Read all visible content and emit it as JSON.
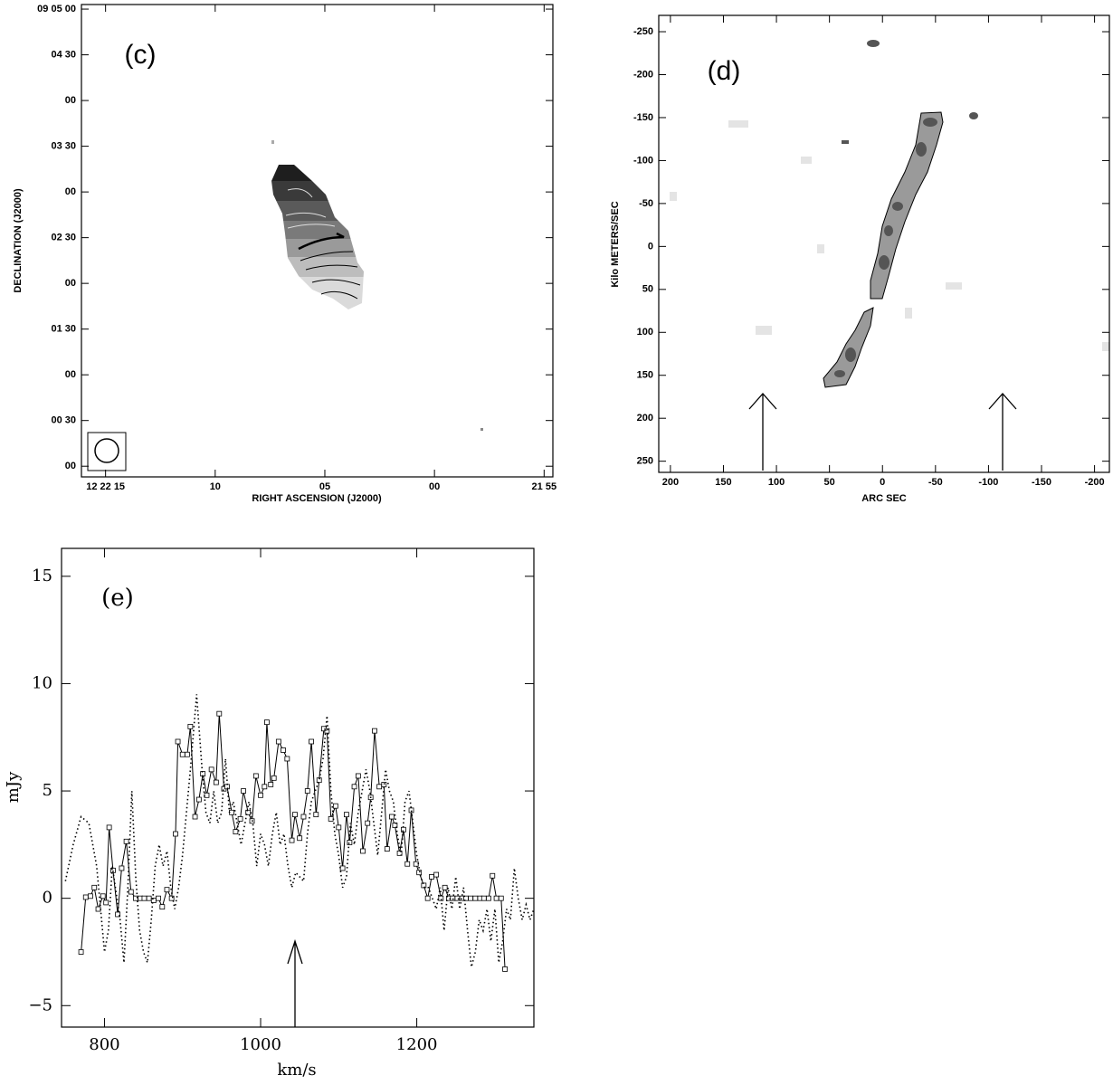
{
  "chart_data": [
    {
      "type": "map",
      "annotation": "(c)",
      "xlabel": "RIGHT ASCENSION (J2000)",
      "ylabel": "DECLINATION (J2000)",
      "xlim": [
        16.1,
        -5.4
      ],
      "xticks": [
        {
          "value": 15,
          "label": "12 22 15"
        },
        10,
        {
          "value": 5,
          "label": "05"
        },
        {
          "value": 0,
          "label": "00"
        },
        {
          "value": -5,
          "label": "21 55"
        }
      ],
      "ylim": [
        -7,
        303
      ],
      "yticks": [
        {
          "value": 300,
          "label": "09 05 00"
        },
        {
          "value": 270,
          "label": "04 30"
        },
        {
          "value": 240,
          "label": "00"
        },
        {
          "value": 210,
          "label": "03 30"
        },
        {
          "value": 180,
          "label": "00"
        },
        {
          "value": 150,
          "label": "02 30"
        },
        {
          "value": 120,
          "label": "00"
        },
        {
          "value": 90,
          "label": "01 30"
        },
        {
          "value": 60,
          "label": "00"
        },
        {
          "value": 30,
          "label": "00 30"
        },
        {
          "value": 0,
          "label": "00"
        }
      ]
    },
    {
      "type": "map",
      "annotation": "(d)",
      "xlabel": "ARC SEC",
      "ylabel": "Kilo METERS/SEC",
      "xlim": [
        211,
        -214
      ],
      "xticks": [
        200,
        150,
        100,
        50,
        0,
        -50,
        -100,
        -150,
        -200
      ],
      "ylim": [
        263,
        -269
      ],
      "yticks": [
        -250,
        -200,
        -150,
        -100,
        -50,
        0,
        50,
        100,
        150,
        200,
        250
      ]
    },
    {
      "type": "line",
      "annotation": "(e)",
      "xlabel": "km/s",
      "ylabel": "mJy",
      "xlim": [
        745,
        1350
      ],
      "xticks": [
        800,
        1000,
        1200
      ],
      "ylim": [
        -6,
        16.3
      ],
      "yticks": [
        15,
        10,
        5,
        0,
        {
          "value": -5,
          "label": "−5"
        }
      ],
      "series": [
        {
          "color": "#000000",
          "style": "solid",
          "markers": true,
          "x": [
            770,
            776,
            782,
            787,
            792,
            798,
            802,
            806,
            811,
            817,
            822,
            828,
            834,
            840,
            846,
            851,
            857,
            863,
            869,
            874,
            880,
            886,
            891,
            894,
            900,
            906,
            910,
            916,
            921,
            926,
            931,
            937,
            943,
            947,
            953,
            957,
            963,
            968,
            974,
            978,
            984,
            989,
            994,
            1000,
            1005,
            1008,
            1013,
            1017,
            1023,
            1029,
            1034,
            1040,
            1044,
            1050,
            1055,
            1060,
            1065,
            1071,
            1075,
            1081,
            1085,
            1090,
            1096,
            1100,
            1105,
            1110,
            1114,
            1120,
            1125,
            1131,
            1137,
            1141,
            1146,
            1152,
            1158,
            1162,
            1168,
            1172,
            1178,
            1183,
            1188,
            1193,
            1199,
            1203,
            1209,
            1214,
            1219,
            1225,
            1231,
            1236,
            1241,
            1246,
            1252,
            1258,
            1263,
            1269,
            1275,
            1281,
            1286,
            1292,
            1297,
            1302,
            1308,
            1313
          ],
          "values": [
            -2.5,
            0.05,
            0.1,
            0.5,
            -0.5,
            0.1,
            -0.2,
            3.3,
            1.3,
            -0.75,
            1.4,
            2.65,
            0.3,
            0,
            0,
            0,
            0,
            -0.1,
            0,
            -0.4,
            0.4,
            0,
            3.0,
            7.3,
            6.7,
            6.7,
            8.0,
            3.8,
            4.6,
            5.8,
            4.8,
            6.0,
            5.4,
            8.6,
            5.1,
            5.2,
            4.0,
            3.1,
            3.7,
            5.0,
            4.0,
            3.6,
            5.7,
            4.8,
            5.2,
            8.2,
            5.3,
            5.6,
            7.3,
            6.9,
            6.5,
            2.7,
            3.9,
            2.8,
            3.8,
            5.0,
            7.3,
            3.9,
            5.5,
            7.9,
            7.8,
            3.7,
            4.3,
            3.3,
            1.4,
            3.9,
            2.6,
            5.2,
            5.7,
            2.2,
            3.5,
            4.7,
            7.8,
            5.2,
            5.3,
            2.3,
            3.8,
            3.4,
            2.1,
            3.2,
            1.6,
            4.1,
            1.6,
            1.2,
            0.6,
            0,
            1.0,
            1.1,
            0,
            0.5,
            0,
            0,
            0,
            0,
            0,
            0,
            0,
            0,
            0,
            0,
            1.05,
            0,
            0,
            -3.3
          ]
        },
        {
          "color": "#000000",
          "style": "dotted",
          "markers": false,
          "x": [
            750,
            760,
            770,
            780,
            790,
            800,
            805,
            810,
            820,
            825,
            830,
            835,
            840,
            845,
            850,
            855,
            860,
            865,
            870,
            875,
            880,
            885,
            890,
            895,
            900,
            910,
            918,
            925,
            930,
            935,
            940,
            945,
            950,
            955,
            960,
            965,
            970,
            975,
            980,
            985,
            990,
            995,
            1000,
            1005,
            1010,
            1015,
            1020,
            1025,
            1030,
            1035,
            1040,
            1045,
            1050,
            1055,
            1060,
            1065,
            1070,
            1075,
            1080,
            1085,
            1090,
            1095,
            1100,
            1105,
            1110,
            1115,
            1120,
            1125,
            1130,
            1135,
            1140,
            1145,
            1150,
            1155,
            1160,
            1165,
            1170,
            1175,
            1180,
            1185,
            1190,
            1195,
            1200,
            1205,
            1210,
            1215,
            1220,
            1225,
            1230,
            1235,
            1240,
            1245,
            1250,
            1255,
            1260,
            1265,
            1270,
            1275,
            1280,
            1285,
            1290,
            1295,
            1300,
            1305,
            1310,
            1315,
            1320,
            1325,
            1330,
            1335,
            1340,
            1345,
            1350
          ],
          "values": [
            0.8,
            2.5,
            3.8,
            3.5,
            1.5,
            -2.5,
            -1.5,
            1.5,
            -1,
            -3,
            0.5,
            5,
            1,
            -1.5,
            -2.5,
            -3,
            -1,
            1.5,
            2.5,
            1.5,
            2.2,
            0.5,
            -0.5,
            0.5,
            2,
            6,
            9.5,
            6,
            4,
            3.5,
            5,
            3.5,
            4,
            6.5,
            4,
            4.5,
            3.5,
            2.5,
            3.5,
            4.5,
            3.5,
            1.5,
            3,
            2.5,
            1.5,
            3,
            4,
            2.5,
            3,
            1.5,
            0.5,
            1.2,
            1,
            0.8,
            3,
            4.5,
            5,
            5.5,
            6.5,
            8.5,
            5,
            3,
            2,
            0.5,
            1,
            3.5,
            2.5,
            4,
            5,
            6,
            5,
            3.5,
            2,
            4,
            6,
            5,
            4.5,
            3,
            2,
            4.5,
            5,
            3.5,
            2,
            1,
            0.5,
            0.5,
            0,
            -0.5,
            0.5,
            -1.5,
            0.5,
            -0.5,
            1,
            -0.5,
            0.5,
            -1.5,
            -3.2,
            -2.5,
            -1,
            -1.5,
            -0.5,
            -2,
            -0.5,
            -3,
            -2,
            -0.5,
            -1,
            1.4,
            0,
            -1,
            -0.3,
            -1,
            -0.5
          ]
        }
      ]
    }
  ]
}
